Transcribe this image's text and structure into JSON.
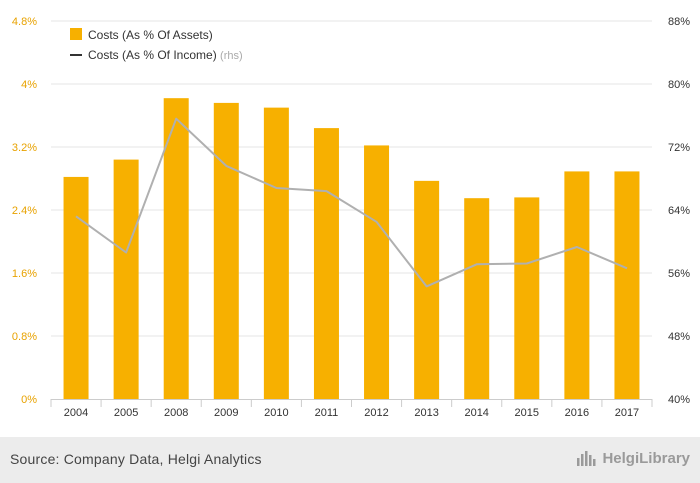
{
  "colors": {
    "bar": "#f7b000",
    "line": "#b0b0b0",
    "left_axis_text": "#e8a200",
    "right_axis_text": "#333333",
    "grid": "#e6e6e6",
    "legend_line": "#333333",
    "rhs_note": "#aaaaaa"
  },
  "chart_data": {
    "type": "bar",
    "categories": [
      "2004",
      "2005",
      "2008",
      "2009",
      "2010",
      "2011",
      "2012",
      "2013",
      "2014",
      "2015",
      "2016",
      "2017"
    ],
    "series": [
      {
        "name": "Costs (As % Of Assets)",
        "type": "bar",
        "axis": "left",
        "values": [
          2.82,
          3.04,
          3.82,
          3.76,
          3.7,
          3.44,
          3.22,
          2.77,
          2.55,
          2.56,
          2.89,
          2.89
        ]
      },
      {
        "name": "Costs (As % Of Income)",
        "name_suffix": "(rhs)",
        "type": "line",
        "axis": "right",
        "values": [
          63.2,
          58.6,
          75.6,
          69.6,
          66.8,
          66.4,
          62.5,
          54.3,
          57.1,
          57.2,
          59.3,
          56.6
        ]
      }
    ],
    "left_axis": {
      "ylim": [
        0,
        4.8
      ],
      "ticks": [
        "0%",
        "0.8%",
        "1.6%",
        "2.4%",
        "3.2%",
        "4%",
        "4.8%"
      ]
    },
    "right_axis": {
      "ylim": [
        40,
        88
      ],
      "ticks": [
        "40%",
        "48%",
        "56%",
        "64%",
        "72%",
        "80%",
        "88%"
      ]
    },
    "legend_position": "top-left",
    "grid": "horizontal"
  },
  "footer": {
    "source": "Source: Company Data, Helgi Analytics",
    "logo_text": "HelgiLibrary",
    "logo_icon": "helgi-library-logo-icon"
  }
}
